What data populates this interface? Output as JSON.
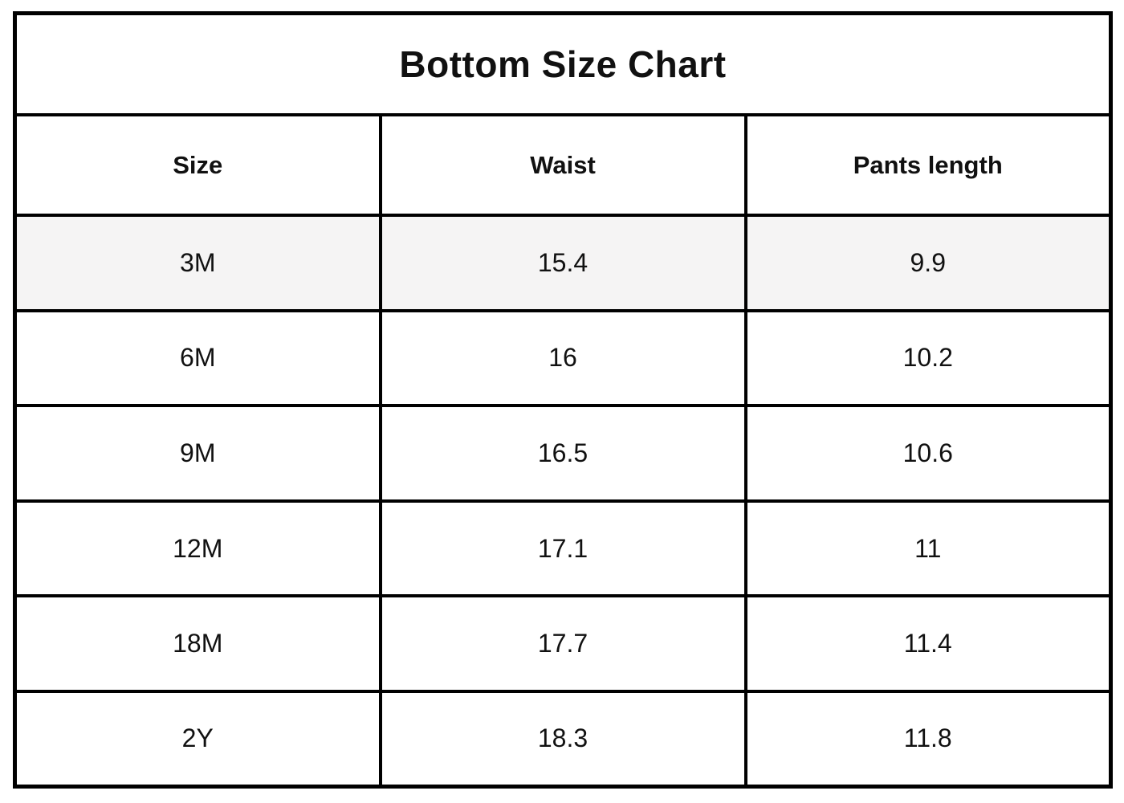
{
  "table": {
    "title": "Bottom Size Chart",
    "columns": [
      "Size",
      "Waist",
      "Pants length"
    ],
    "rows": [
      {
        "size": "3M",
        "waist": "15.4",
        "pants_length": "9.9"
      },
      {
        "size": "6M",
        "waist": "16",
        "pants_length": "10.2"
      },
      {
        "size": "9M",
        "waist": "16.5",
        "pants_length": "10.6"
      },
      {
        "size": "12M",
        "waist": "17.1",
        "pants_length": "11"
      },
      {
        "size": "18M",
        "waist": "17.7",
        "pants_length": "11.4"
      },
      {
        "size": "2Y",
        "waist": "18.3",
        "pants_length": "11.8"
      }
    ],
    "colors": {
      "border": "#000000",
      "background": "#ffffff",
      "highlight_row_background": "#f5f4f4",
      "text": "#111111"
    }
  }
}
